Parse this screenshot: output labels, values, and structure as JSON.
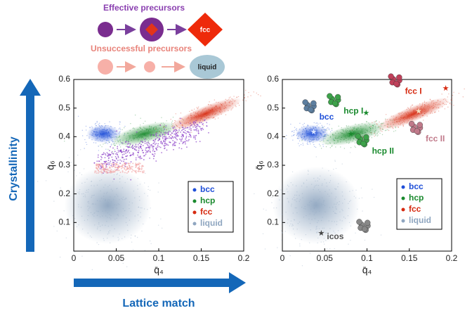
{
  "schematic": {
    "effective": "Effective precursors",
    "fcc": "fcc",
    "unsuccessful": "Unsuccessful precursors",
    "liquid": "liquid"
  },
  "axis_arrows": {
    "y": "Crystallinity",
    "x": "Lattice match"
  },
  "chart_data": [
    {
      "type": "scatter",
      "x_label": "q̄₄",
      "y_label": "q̄₆",
      "xlim": [
        0,
        0.2
      ],
      "ylim": [
        0,
        0.6
      ],
      "xticks": [
        0,
        0.05,
        0.1,
        0.15,
        0.2
      ],
      "yticks": [
        0.1,
        0.2,
        0.3,
        0.4,
        0.5,
        0.6
      ],
      "series": [
        {
          "name": "bcc",
          "color": "#1f4fd8",
          "x": [
            0.035
          ],
          "values": [
            0.41
          ]
        },
        {
          "name": "hcp",
          "color": "#1a8a2e",
          "x": [
            0.083
          ],
          "values": [
            0.41
          ]
        },
        {
          "name": "fcc",
          "color": "#d62a10",
          "x": [
            0.155
          ],
          "values": [
            0.48
          ]
        },
        {
          "name": "liquid",
          "color": "#8fa6c0",
          "x": [
            0.04
          ],
          "values": [
            0.16
          ]
        }
      ]
    },
    {
      "type": "scatter",
      "x_label": "q̄₄",
      "y_label": "q̄₆",
      "xlim": [
        0,
        0.2
      ],
      "ylim": [
        0,
        0.6
      ],
      "xticks": [
        0,
        0.05,
        0.1,
        0.15,
        0.2
      ],
      "yticks": [
        0.1,
        0.2,
        0.3,
        0.4,
        0.5,
        0.6
      ],
      "series": [
        {
          "name": "bcc",
          "color": "#1f4fd8",
          "x": [
            0.035
          ],
          "values": [
            0.41
          ]
        },
        {
          "name": "hcp",
          "color": "#1a8a2e",
          "x": [
            0.083
          ],
          "values": [
            0.41
          ]
        },
        {
          "name": "fcc",
          "color": "#d62a10",
          "x": [
            0.155
          ],
          "values": [
            0.48
          ]
        },
        {
          "name": "liquid",
          "color": "#8fa6c0",
          "x": [
            0.04
          ],
          "values": [
            0.16
          ]
        }
      ],
      "annotations": [
        {
          "text": "bcc",
          "x": 0.037,
          "y": 0.418,
          "color": "#dde6ff"
        },
        {
          "text": "hcp I",
          "x": 0.099,
          "y": 0.484,
          "color": "#1a8a2e"
        },
        {
          "text": "hcp II",
          "x": 0.081,
          "y": 0.41,
          "color": "#1a8a2e"
        },
        {
          "text": "fcc I",
          "x": 0.193,
          "y": 0.57,
          "color": "#d62a10"
        },
        {
          "text": "fcc II",
          "x": 0.161,
          "y": 0.49,
          "color": "#f5e0c0"
        },
        {
          "text": "icos",
          "x": 0.046,
          "y": 0.064,
          "color": "#444444"
        }
      ]
    }
  ]
}
